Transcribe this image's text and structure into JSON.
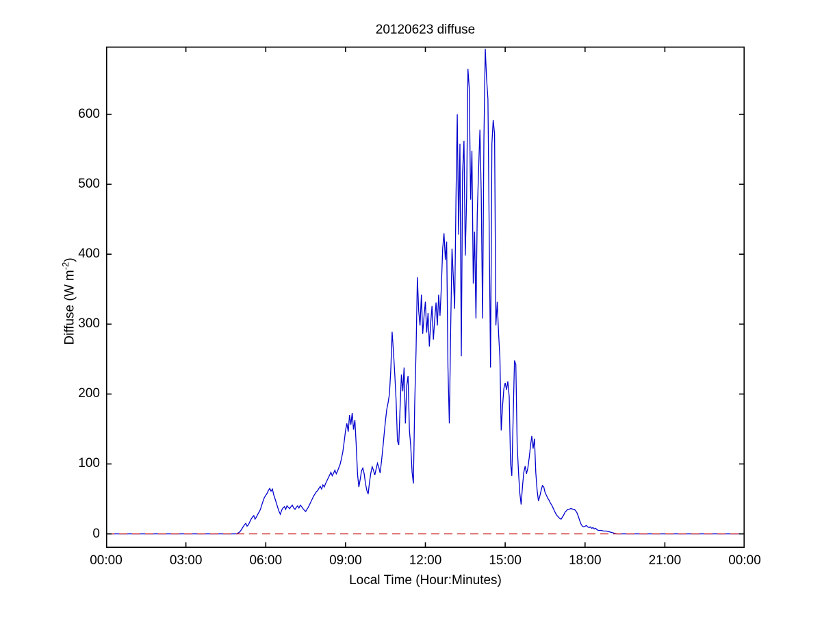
{
  "figure_title": "20120623 diffuse",
  "chart_data": {
    "type": "line",
    "title": "20120623 diffuse",
    "xlabel": "Local Time (Hour:Minutes)",
    "ylabel": "Diffuse (W m^-2)",
    "ylabel_parts": {
      "prefix": "Diffuse (W m",
      "sup": "-2",
      "suffix": ")"
    },
    "grid": false,
    "legend": "none",
    "xlim": [
      0,
      24
    ],
    "ylim": [
      -20,
      697
    ],
    "xticks": {
      "values": [
        0,
        3,
        6,
        9,
        12,
        15,
        18,
        21,
        24
      ],
      "labels": [
        "00:00",
        "03:00",
        "06:00",
        "09:00",
        "12:00",
        "15:00",
        "18:00",
        "21:00",
        "00:00"
      ]
    },
    "yticks": {
      "values": [
        0,
        100,
        200,
        300,
        400,
        500,
        600
      ],
      "labels": [
        "0",
        "100",
        "200",
        "300",
        "400",
        "500",
        "600"
      ]
    },
    "axis_color": "#000000",
    "series": [
      {
        "name": "diffuse-irradiance",
        "color": "#0000CD",
        "style": "solid",
        "x": [
          0,
          0.5,
          1,
          1.5,
          2,
          2.5,
          3,
          3.5,
          4,
          4.5,
          4.9,
          5,
          5.05,
          5.1,
          5.15,
          5.2,
          5.25,
          5.3,
          5.35,
          5.4,
          5.45,
          5.5,
          5.55,
          5.6,
          5.65,
          5.7,
          5.75,
          5.8,
          5.85,
          5.9,
          5.95,
          6,
          6.05,
          6.1,
          6.15,
          6.2,
          6.25,
          6.3,
          6.35,
          6.4,
          6.45,
          6.5,
          6.55,
          6.6,
          6.65,
          6.7,
          6.75,
          6.8,
          6.85,
          6.9,
          6.95,
          7,
          7.05,
          7.1,
          7.15,
          7.2,
          7.25,
          7.3,
          7.35,
          7.4,
          7.45,
          7.5,
          7.55,
          7.6,
          7.65,
          7.7,
          7.75,
          7.8,
          7.85,
          7.9,
          7.95,
          8,
          8.05,
          8.1,
          8.15,
          8.2,
          8.25,
          8.3,
          8.35,
          8.4,
          8.45,
          8.5,
          8.55,
          8.6,
          8.65,
          8.7,
          8.75,
          8.8,
          8.85,
          8.9,
          8.95,
          9,
          9.05,
          9.1,
          9.15,
          9.2,
          9.25,
          9.3,
          9.35,
          9.4,
          9.45,
          9.5,
          9.55,
          9.6,
          9.65,
          9.7,
          9.75,
          9.8,
          9.85,
          9.9,
          9.95,
          10,
          10.05,
          10.1,
          10.15,
          10.2,
          10.25,
          10.3,
          10.35,
          10.4,
          10.45,
          10.5,
          10.55,
          10.6,
          10.65,
          10.7,
          10.75,
          10.8,
          10.85,
          10.9,
          10.95,
          11,
          11.05,
          11.1,
          11.15,
          11.2,
          11.25,
          11.3,
          11.35,
          11.4,
          11.45,
          11.5,
          11.55,
          11.6,
          11.65,
          11.7,
          11.75,
          11.8,
          11.85,
          11.9,
          11.95,
          12,
          12.05,
          12.1,
          12.15,
          12.2,
          12.25,
          12.3,
          12.35,
          12.4,
          12.45,
          12.5,
          12.55,
          12.6,
          12.65,
          12.7,
          12.75,
          12.8,
          12.85,
          12.9,
          12.95,
          13,
          13.05,
          13.1,
          13.15,
          13.2,
          13.25,
          13.3,
          13.35,
          13.4,
          13.45,
          13.5,
          13.55,
          13.6,
          13.65,
          13.7,
          13.75,
          13.8,
          13.85,
          13.9,
          13.95,
          14,
          14.05,
          14.1,
          14.15,
          14.2,
          14.25,
          14.3,
          14.35,
          14.4,
          14.45,
          14.5,
          14.55,
          14.6,
          14.65,
          14.7,
          14.75,
          14.8,
          14.85,
          14.9,
          14.95,
          15,
          15.05,
          15.1,
          15.15,
          15.2,
          15.25,
          15.3,
          15.35,
          15.4,
          15.45,
          15.5,
          15.55,
          15.6,
          15.65,
          15.7,
          15.75,
          15.8,
          15.85,
          15.9,
          15.95,
          16,
          16.05,
          16.1,
          16.15,
          16.2,
          16.25,
          16.3,
          16.35,
          16.4,
          16.45,
          16.5,
          16.55,
          16.6,
          16.65,
          16.7,
          16.75,
          16.8,
          16.85,
          16.9,
          16.95,
          17,
          17.05,
          17.1,
          17.15,
          17.2,
          17.25,
          17.3,
          17.35,
          17.4,
          17.45,
          17.5,
          17.55,
          17.6,
          17.65,
          17.7,
          17.75,
          17.8,
          17.85,
          17.9,
          17.95,
          18,
          18.05,
          18.1,
          18.15,
          18.2,
          18.25,
          18.3,
          18.35,
          18.4,
          18.45,
          18.5,
          18.6,
          18.7,
          18.8,
          18.9,
          19,
          19.1,
          19.2,
          19.5,
          20,
          20.5,
          21,
          21.5,
          22,
          22.5,
          23,
          23.5,
          24
        ],
        "y": [
          0,
          0,
          0,
          0,
          0,
          0,
          0,
          0,
          0,
          0,
          0,
          2,
          4,
          7,
          10,
          13,
          15,
          11,
          13,
          17,
          21,
          24,
          26,
          21,
          24,
          28,
          31,
          35,
          41,
          47,
          52,
          55,
          58,
          62,
          65,
          61,
          64,
          56,
          50,
          44,
          38,
          32,
          28,
          34,
          37,
          39,
          35,
          40,
          38,
          36,
          39,
          41,
          37,
          35,
          38,
          40,
          37,
          41,
          39,
          36,
          34,
          32,
          35,
          38,
          42,
          46,
          50,
          54,
          57,
          60,
          62,
          65,
          68,
          64,
          70,
          67,
          72,
          76,
          80,
          84,
          88,
          83,
          87,
          91,
          86,
          90,
          95,
          100,
          108,
          118,
          132,
          148,
          158,
          146,
          170,
          156,
          173,
          149,
          163,
          128,
          85,
          67,
          78,
          90,
          94,
          86,
          72,
          62,
          57,
          74,
          87,
          96,
          91,
          84,
          93,
          101,
          95,
          87,
          104,
          122,
          142,
          162,
          178,
          188,
          200,
          235,
          289,
          260,
          228,
          192,
          133,
          127,
          182,
          228,
          204,
          238,
          158,
          212,
          226,
          148,
          126,
          88,
          72,
          186,
          262,
          367,
          318,
          298,
          342,
          286,
          312,
          332,
          288,
          316,
          268,
          302,
          326,
          278,
          306,
          331,
          298,
          342,
          312,
          352,
          408,
          430,
          392,
          418,
          238,
          158,
          288,
          408,
          368,
          322,
          478,
          600,
          428,
          558,
          254,
          518,
          562,
          398,
          482,
          665,
          638,
          478,
          548,
          358,
          432,
          308,
          458,
          522,
          578,
          488,
          308,
          562,
          694,
          652,
          622,
          428,
          238,
          558,
          592,
          572,
          298,
          332,
          288,
          252,
          148,
          182,
          208,
          216,
          206,
          218,
          196,
          102,
          83,
          168,
          248,
          242,
          128,
          88,
          58,
          42,
          68,
          88,
          97,
          86,
          94,
          108,
          126,
          140,
          122,
          136,
          88,
          62,
          47,
          54,
          62,
          69,
          67,
          59,
          55,
          51,
          48,
          44,
          41,
          37,
          33,
          29,
          26,
          24,
          22,
          21,
          24,
          27,
          31,
          33,
          35,
          35,
          36,
          36,
          35,
          35,
          33,
          30,
          25,
          19,
          14,
          11,
          10,
          11,
          12,
          10,
          9,
          10,
          8,
          9,
          7,
          8,
          6,
          5,
          5,
          4,
          4,
          3,
          2,
          1,
          0,
          0,
          0,
          0,
          0,
          0,
          0,
          0,
          0,
          0,
          0
        ]
      },
      {
        "name": "zero-reference-line",
        "color": "#CC2222",
        "style": "dashed",
        "x": [
          0,
          24
        ],
        "y": [
          0,
          0
        ]
      }
    ]
  }
}
